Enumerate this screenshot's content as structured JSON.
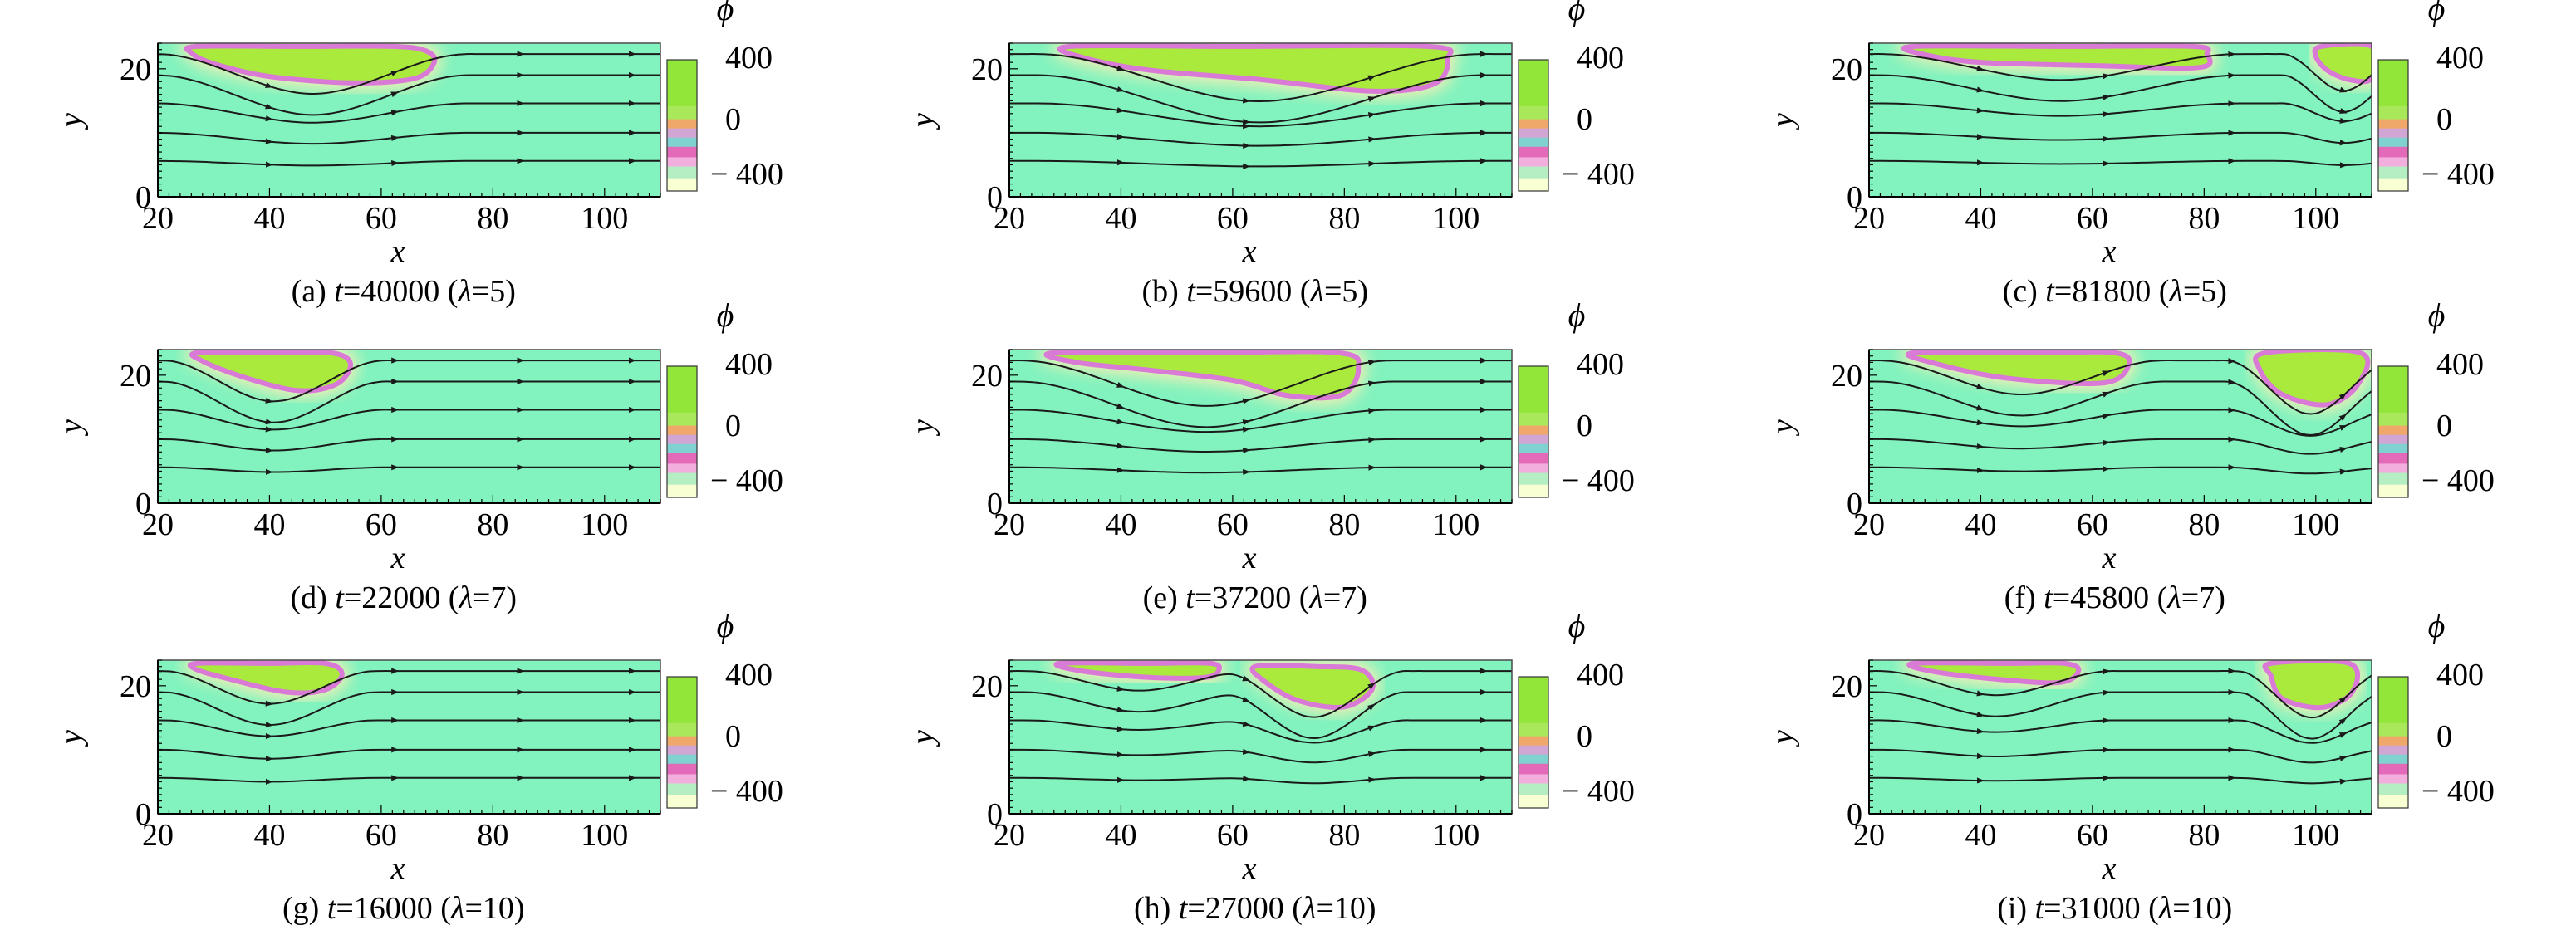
{
  "figure": {
    "colorbar": {
      "symbol": "ϕ",
      "ticks": [
        "400",
        "0",
        "− 400"
      ],
      "colors": [
        "#f8ffd2",
        "#b6eec4",
        "#f2aedc",
        "#e36ab8",
        "#7fd2cf",
        "#d2a6d4",
        "#f0a86a",
        "#a9e85a",
        "#92e63a"
      ]
    },
    "colors": {
      "background_phase": "#82f2be",
      "droplet": "#a9ea3c",
      "interface": "#d97bd6",
      "interface_glow": "#f6f0b4",
      "streamline": "#1a1a1a"
    }
  },
  "chart_data": [
    {
      "id": "a",
      "type": "heatmap",
      "title": "(a) t=40000 (λ=5)",
      "caption_pre": "(a) ",
      "caption_t": "t",
      "caption_mid": "=40000 (",
      "caption_lam": "λ",
      "caption_post": "=5)",
      "xlabel": "x",
      "ylabel": "y",
      "xlim": [
        20,
        110
      ],
      "ylim": [
        0,
        24
      ],
      "xticks": [
        "20",
        "40",
        "60",
        "80",
        "100"
      ],
      "yticks": [
        "0",
        "20"
      ],
      "droplets": [
        [
          [
            27,
            23.5
          ],
          [
            45,
            23.5
          ],
          [
            62,
            23.5
          ],
          [
            68,
            22.8
          ],
          [
            69.5,
            21
          ],
          [
            66,
            18.5
          ],
          [
            55,
            17.8
          ],
          [
            40,
            18.8
          ],
          [
            30,
            20.8
          ],
          [
            26,
            22.5
          ]
        ]
      ]
    },
    {
      "id": "b",
      "type": "heatmap",
      "title": "(b) t=59600 (λ=5)",
      "caption_pre": "(b) ",
      "caption_t": "t",
      "caption_mid": "=59600 (",
      "caption_lam": "λ",
      "caption_post": "=5)",
      "xlabel": "x",
      "ylabel": "y",
      "xlim": [
        20,
        110
      ],
      "ylim": [
        0,
        24
      ],
      "xticks": [
        "20",
        "40",
        "60",
        "80",
        "100"
      ],
      "yticks": [
        "0",
        "20"
      ],
      "droplets": [
        [
          [
            31,
            23.5
          ],
          [
            60,
            23.5
          ],
          [
            95,
            23.5
          ],
          [
            98.5,
            21.5
          ],
          [
            96,
            17.6
          ],
          [
            85,
            16.5
          ],
          [
            65,
            18.3
          ],
          [
            45,
            19.8
          ],
          [
            33,
            21.8
          ]
        ]
      ]
    },
    {
      "id": "c",
      "type": "heatmap",
      "title": "(c) t=81800 (λ=5)",
      "caption_pre": "(c) ",
      "caption_t": "t",
      "caption_mid": "=81800 (",
      "caption_lam": "λ",
      "caption_post": "=5)",
      "xlabel": "x",
      "ylabel": "y",
      "xlim": [
        20,
        110
      ],
      "ylim": [
        0,
        24
      ],
      "xticks": [
        "20",
        "40",
        "60",
        "80",
        "100"
      ],
      "yticks": [
        "0",
        "20"
      ],
      "droplets": [
        [
          [
            28,
            23.5
          ],
          [
            55,
            23.5
          ],
          [
            78,
            23.5
          ],
          [
            80.5,
            22.3
          ],
          [
            79,
            20.2
          ],
          [
            60,
            20.5
          ],
          [
            40,
            21
          ],
          [
            30,
            22.2
          ]
        ],
        [
          [
            101,
            23.5
          ],
          [
            110,
            23.5
          ],
          [
            110,
            18.5
          ],
          [
            106,
            18.3
          ],
          [
            102,
            19.8
          ],
          [
            100,
            22
          ]
        ]
      ]
    },
    {
      "id": "d",
      "type": "heatmap",
      "title": "(d) t=22000 (λ=7)",
      "caption_pre": "(d) ",
      "caption_t": "t",
      "caption_mid": "=22000 (",
      "caption_lam": "λ",
      "caption_post": "=7)",
      "xlabel": "x",
      "ylabel": "y",
      "xlim": [
        20,
        110
      ],
      "ylim": [
        0,
        24
      ],
      "xticks": [
        "20",
        "40",
        "60",
        "80",
        "100"
      ],
      "yticks": [
        "0",
        "20"
      ],
      "droplets": [
        [
          [
            27,
            23.5
          ],
          [
            40,
            23.5
          ],
          [
            51,
            23.5
          ],
          [
            54.5,
            21.8
          ],
          [
            52,
            18.6
          ],
          [
            45,
            17.6
          ],
          [
            35,
            19.8
          ],
          [
            28,
            22.2
          ]
        ]
      ]
    },
    {
      "id": "e",
      "type": "heatmap",
      "title": "(e) t=37200 (λ=7)",
      "caption_pre": "(e) ",
      "caption_t": "t",
      "caption_mid": "=37200 (",
      "caption_lam": "λ",
      "caption_post": "=7)",
      "xlabel": "x",
      "ylabel": "y",
      "xlim": [
        20,
        110
      ],
      "ylim": [
        0,
        24
      ],
      "xticks": [
        "20",
        "40",
        "60",
        "80",
        "100"
      ],
      "yticks": [
        "0",
        "20"
      ],
      "droplets": [
        [
          [
            28,
            23.5
          ],
          [
            55,
            23.5
          ],
          [
            79,
            23.5
          ],
          [
            82.5,
            21
          ],
          [
            79.5,
            16.9
          ],
          [
            70,
            16.8
          ],
          [
            60,
            19.2
          ],
          [
            45,
            20.8
          ],
          [
            32,
            22
          ]
        ]
      ]
    },
    {
      "id": "f",
      "type": "heatmap",
      "title": "(f) t=45800 (λ=7)",
      "caption_pre": "(f) ",
      "caption_t": "t",
      "caption_mid": "=45800 (",
      "caption_lam": "λ",
      "caption_post": "=7)",
      "xlabel": "x",
      "ylabel": "y",
      "xlim": [
        20,
        110
      ],
      "ylim": [
        0,
        24
      ],
      "xticks": [
        "20",
        "40",
        "60",
        "80",
        "100"
      ],
      "yticks": [
        "0",
        "20"
      ],
      "droplets": [
        [
          [
            28,
            23.5
          ],
          [
            50,
            23.5
          ],
          [
            64,
            23.5
          ],
          [
            66.5,
            21.6
          ],
          [
            62,
            18.8
          ],
          [
            45,
            19.5
          ],
          [
            32,
            21.8
          ]
        ],
        [
          [
            91,
            23.5
          ],
          [
            108,
            23.5
          ],
          [
            107.5,
            18.5
          ],
          [
            102,
            15.4
          ],
          [
            94,
            17
          ],
          [
            90,
            20.8
          ]
        ]
      ]
    },
    {
      "id": "g",
      "type": "heatmap",
      "title": "(g) t=16000 (λ=10)",
      "caption_pre": "(g) ",
      "caption_t": "t",
      "caption_mid": "=16000 (",
      "caption_lam": "λ",
      "caption_post": "=10)",
      "xlabel": "x",
      "ylabel": "y",
      "xlim": [
        20,
        110
      ],
      "ylim": [
        0,
        24
      ],
      "xticks": [
        "20",
        "40",
        "60",
        "80",
        "100"
      ],
      "yticks": [
        "0",
        "20"
      ],
      "droplets": [
        [
          [
            27,
            23.5
          ],
          [
            40,
            23.5
          ],
          [
            50,
            23.5
          ],
          [
            53,
            21.8
          ],
          [
            50,
            19.4
          ],
          [
            43,
            19
          ],
          [
            33,
            21
          ],
          [
            27,
            22.5
          ]
        ]
      ]
    },
    {
      "id": "h",
      "type": "heatmap",
      "title": "(h) t=27000 (λ=10)",
      "caption_pre": "(h) ",
      "caption_t": "t",
      "caption_mid": "=27000 (",
      "caption_lam": "λ",
      "caption_post": "=10)",
      "xlabel": "x",
      "ylabel": "y",
      "xlim": [
        20,
        110
      ],
      "ylim": [
        0,
        24
      ],
      "xticks": [
        "20",
        "40",
        "60",
        "80",
        "100"
      ],
      "yticks": [
        "0",
        "20"
      ],
      "droplets": [
        [
          [
            29,
            23.5
          ],
          [
            45,
            23.5
          ],
          [
            56,
            23.5
          ],
          [
            57.5,
            22.4
          ],
          [
            55,
            21.3
          ],
          [
            45,
            21.3
          ],
          [
            33,
            22.3
          ]
        ],
        [
          [
            64,
            23
          ],
          [
            75,
            23
          ],
          [
            83,
            22.5
          ],
          [
            85,
            19.5
          ],
          [
            80,
            16.7
          ],
          [
            72,
            17.6
          ],
          [
            66,
            20.5
          ]
        ]
      ]
    },
    {
      "id": "i",
      "type": "heatmap",
      "title": "(i) t=31000 (λ=10)",
      "caption_pre": "(i) ",
      "caption_t": "t",
      "caption_mid": "=31000 (",
      "caption_lam": "λ",
      "caption_post": "=10)",
      "xlabel": "x",
      "ylabel": "y",
      "xlim": [
        20,
        110
      ],
      "ylim": [
        0,
        24
      ],
      "xticks": [
        "20",
        "40",
        "60",
        "80",
        "100"
      ],
      "yticks": [
        "0",
        "20"
      ],
      "droplets": [
        [
          [
            28,
            23.5
          ],
          [
            45,
            23.5
          ],
          [
            55,
            23.5
          ],
          [
            57.5,
            22.3
          ],
          [
            54,
            20.5
          ],
          [
            42,
            21.1
          ],
          [
            31,
            22.3
          ]
        ],
        [
          [
            92,
            23.5
          ],
          [
            106,
            23.5
          ],
          [
            106.5,
            19
          ],
          [
            101,
            16.6
          ],
          [
            94,
            18
          ],
          [
            92,
            21.5
          ]
        ]
      ]
    }
  ]
}
